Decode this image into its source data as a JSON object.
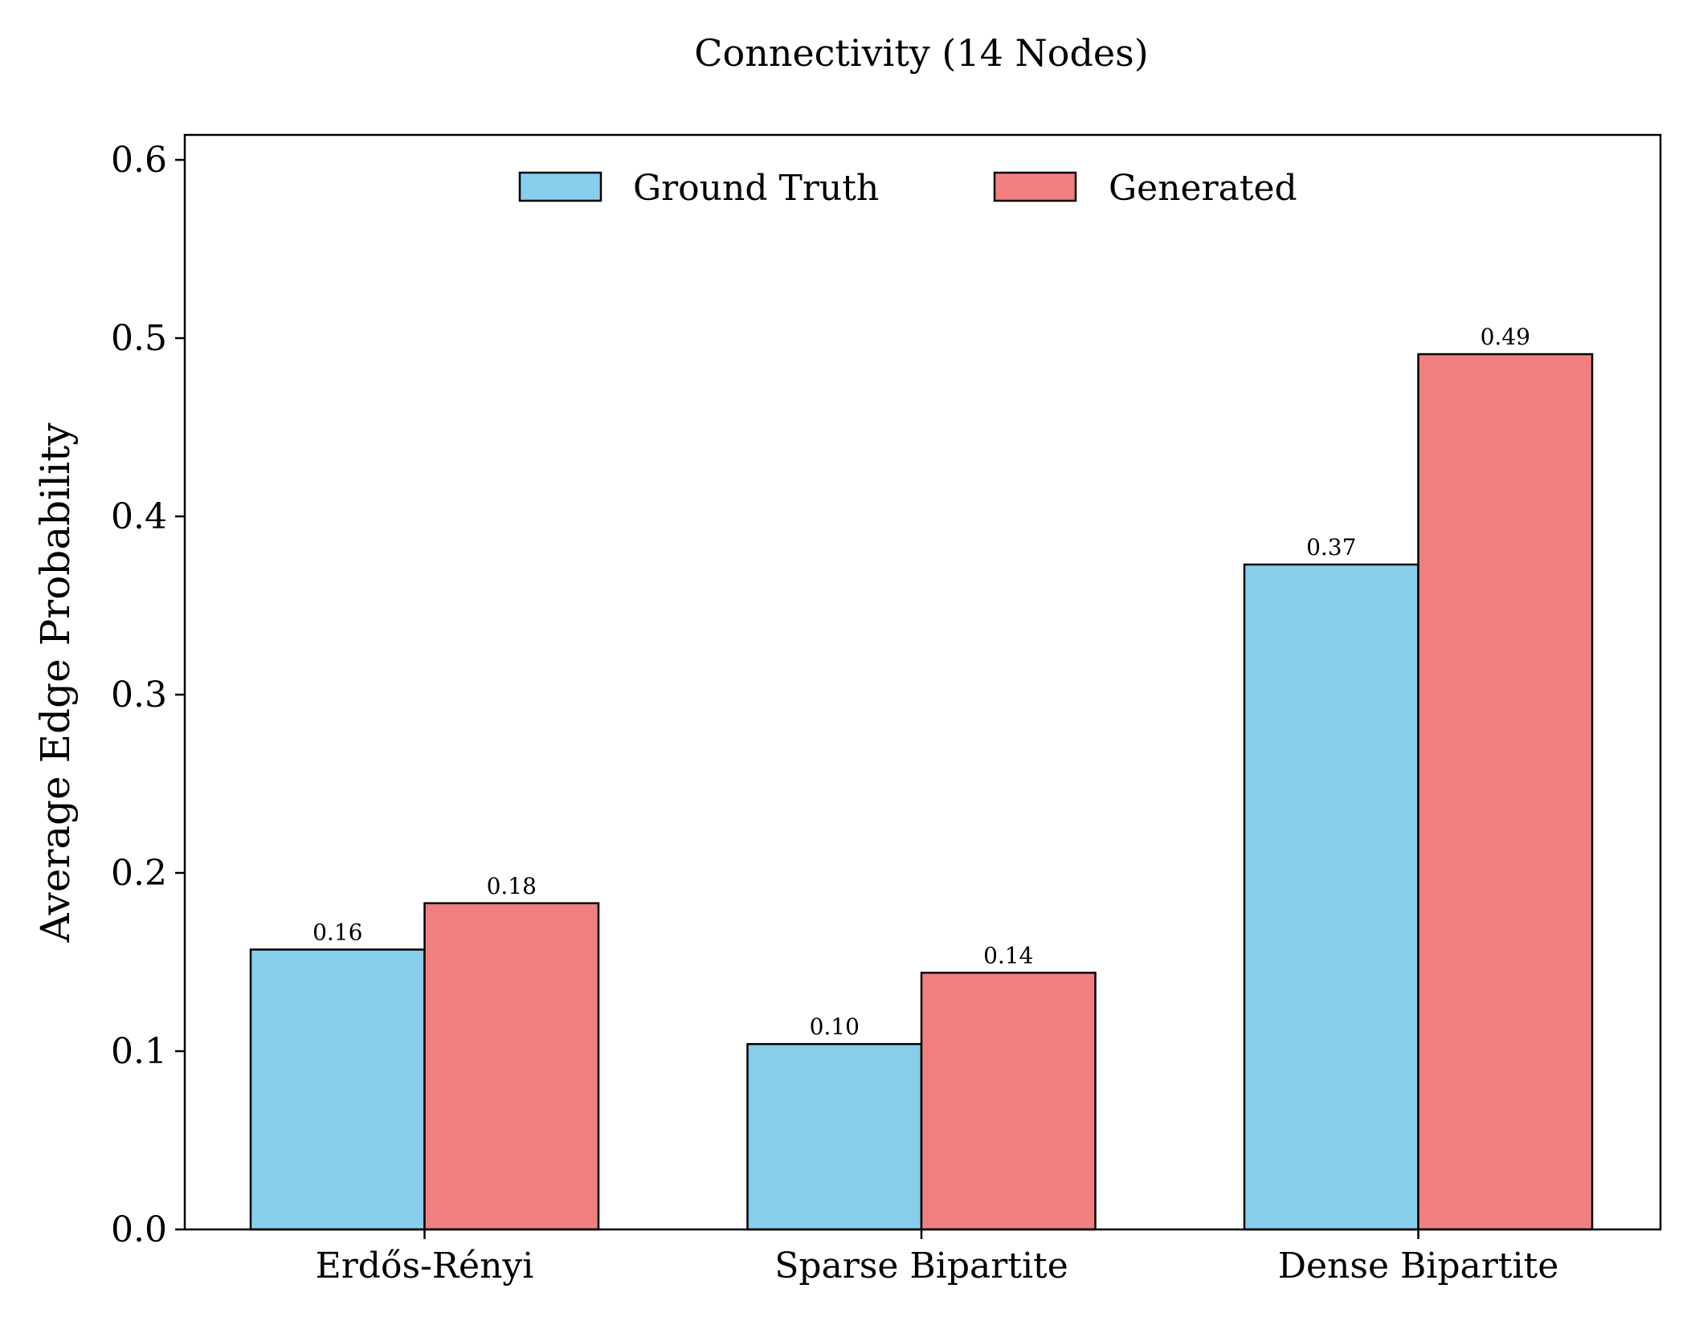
{
  "chart_data": {
    "type": "bar",
    "title": "Connectivity (14 Nodes)",
    "xlabel": "",
    "ylabel": "Average Edge Probability",
    "categories": [
      "Erdős-Rényi",
      "Sparse Bipartite",
      "Dense Bipartite"
    ],
    "series": [
      {
        "name": "Ground Truth",
        "values": [
          0.157,
          0.104,
          0.373
        ],
        "labels": [
          "0.16",
          "0.10",
          "0.37"
        ],
        "color": "#87CEEB"
      },
      {
        "name": "Generated",
        "values": [
          0.183,
          0.144,
          0.491
        ],
        "labels": [
          "0.18",
          "0.14",
          "0.49"
        ],
        "color": "#F08080"
      }
    ],
    "ylim": [
      0,
      0.614
    ],
    "yticks": [
      0.0,
      0.1,
      0.2,
      0.3,
      0.4,
      0.5,
      0.6
    ],
    "ytick_labels": [
      "0.0",
      "0.1",
      "0.2",
      "0.3",
      "0.4",
      "0.5",
      "0.6"
    ],
    "grid": false,
    "legend_position": "top-center"
  }
}
